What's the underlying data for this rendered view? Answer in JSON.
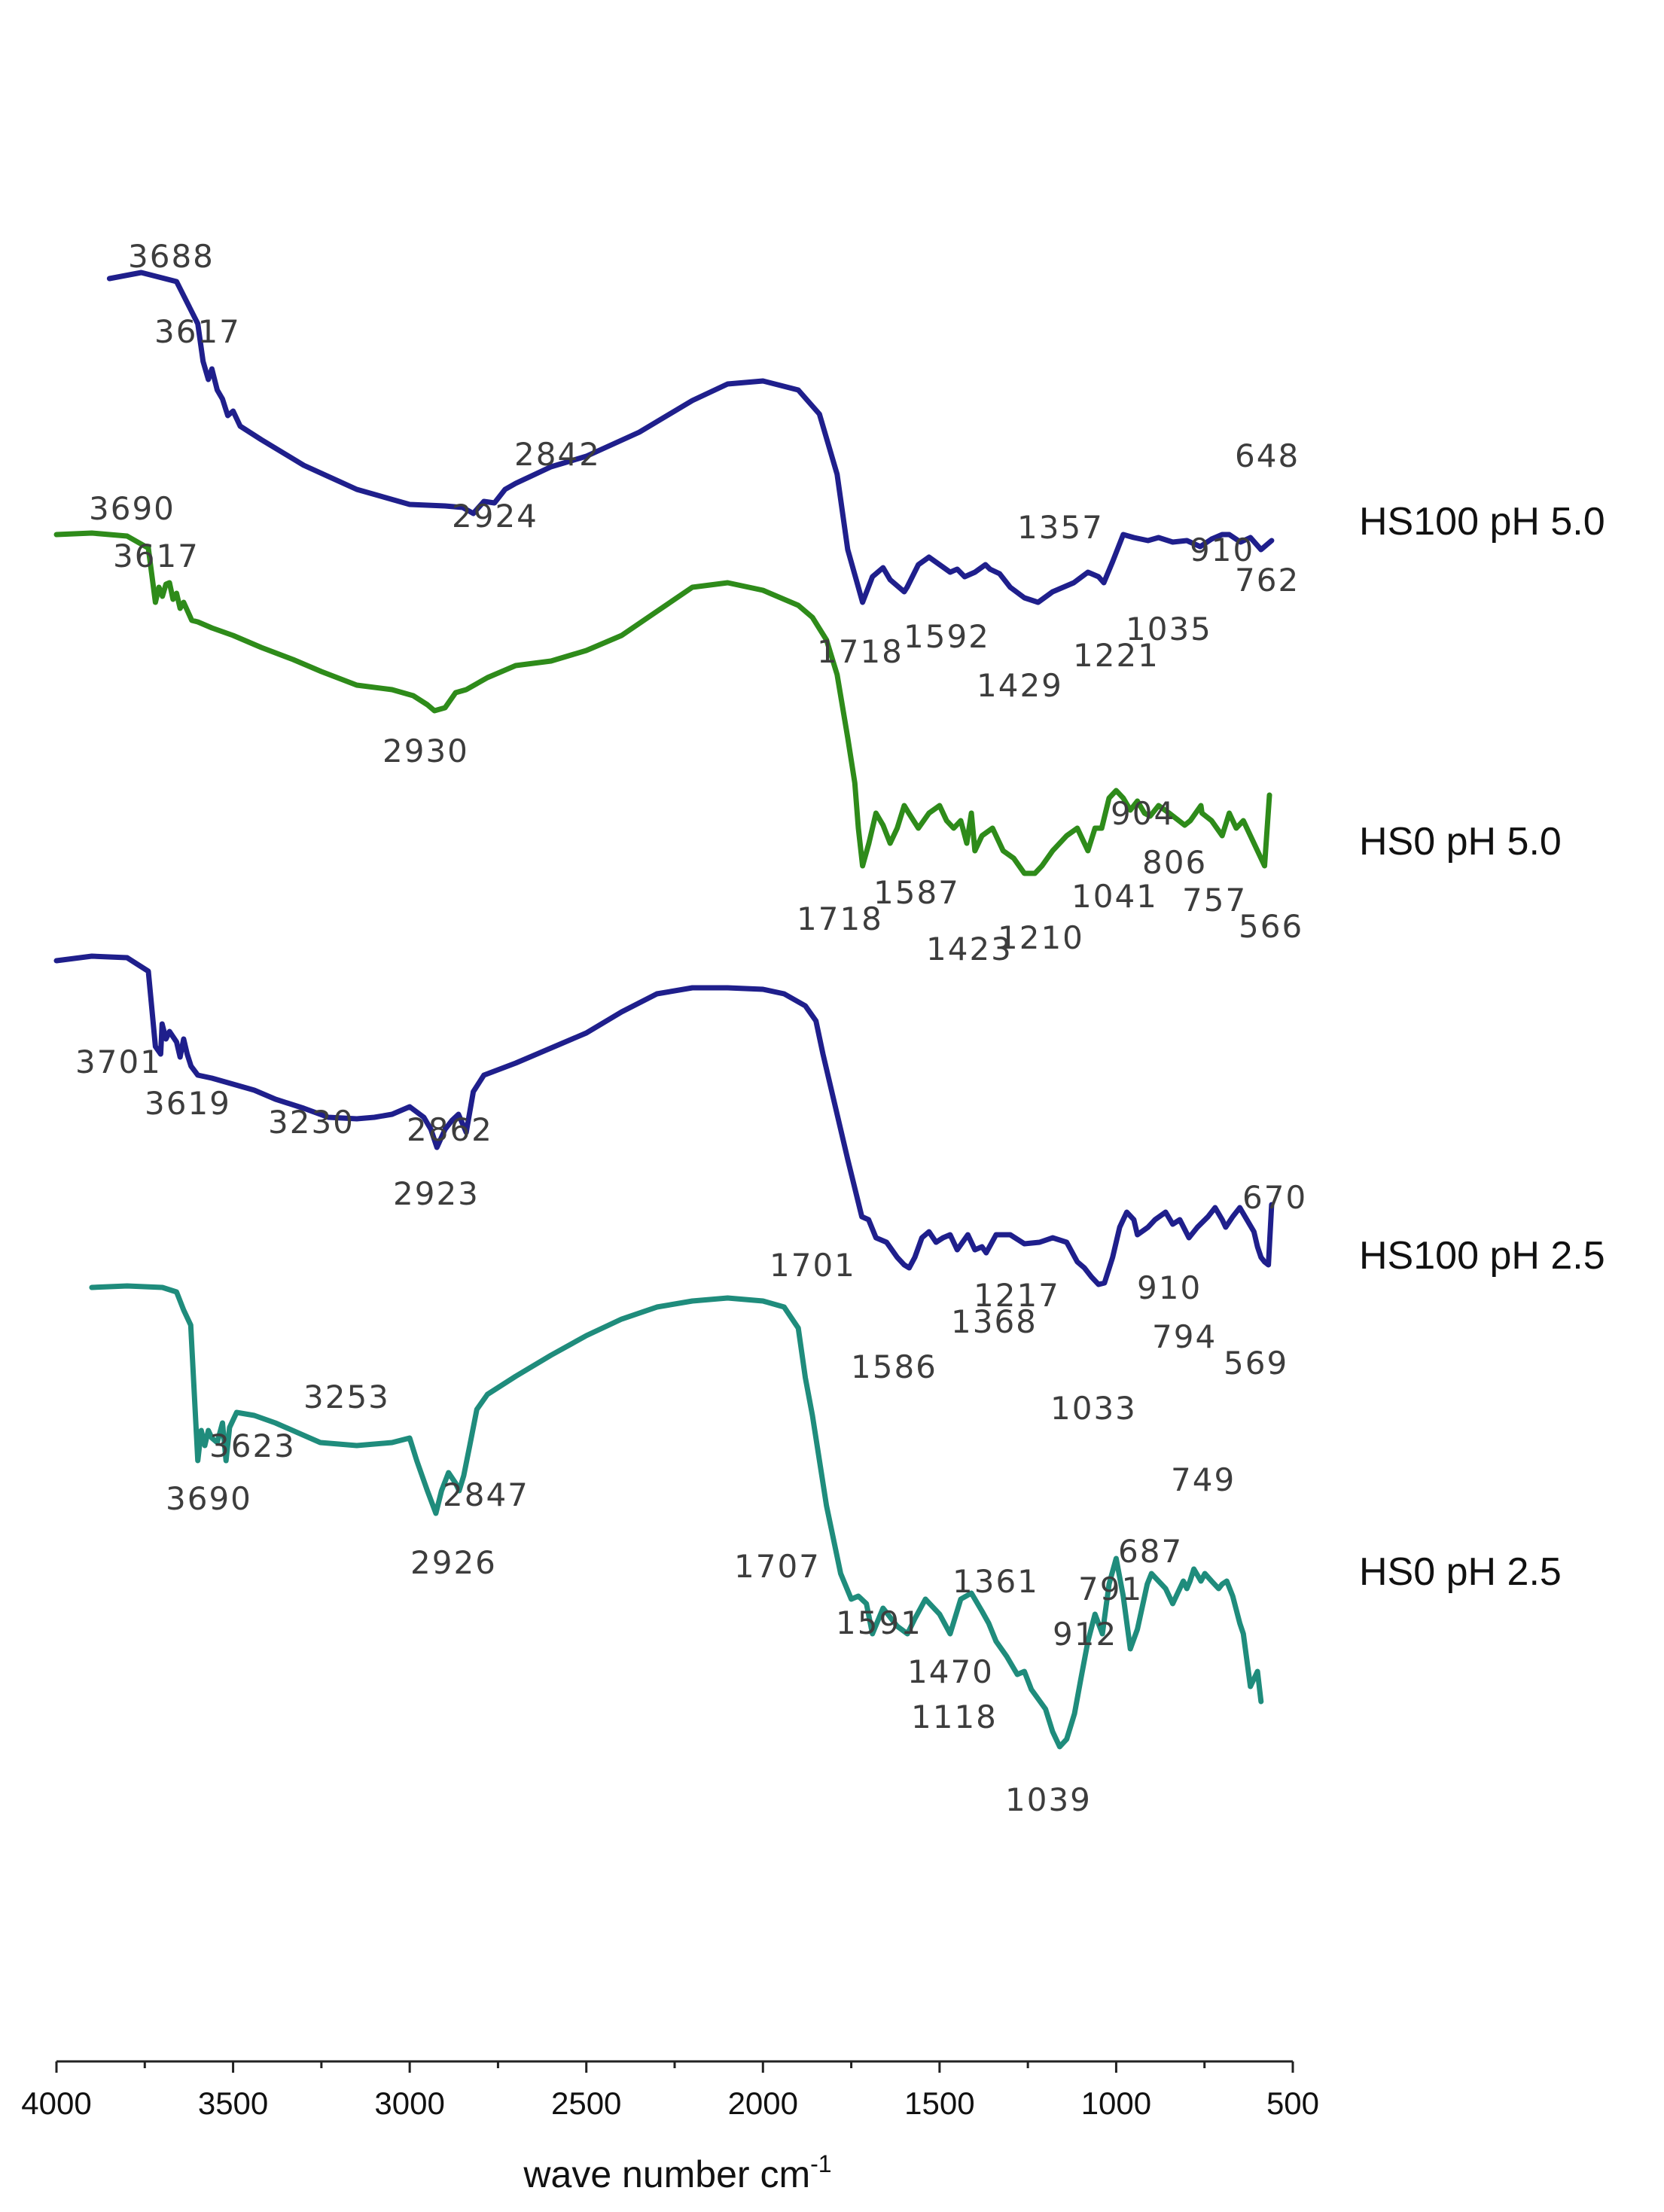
{
  "chart_data": {
    "type": "line",
    "title": "",
    "xlabel": "wave number cm",
    "xlabel_superscript": "-1",
    "ylabel": "",
    "xlim": [
      4000,
      500
    ],
    "x_reversed": true,
    "xticks": [
      4000,
      3500,
      3000,
      2500,
      2000,
      1500,
      1000,
      500
    ],
    "xtick_labels": [
      "4000",
      "3500",
      "3000",
      "2500",
      "2000",
      "1500",
      "1000",
      "500"
    ],
    "y_axis_shown": false,
    "grid": false,
    "legend": "series names at right end of each trace",
    "series": [
      {
        "name": "HS100 pH 5.0",
        "color": "#1f1f8c",
        "x": [
          3850,
          3760,
          3660,
          3600,
          3585,
          3570,
          3560,
          3545,
          3530,
          3515,
          3500,
          3480,
          3420,
          3300,
          3150,
          3000,
          2900,
          2850,
          2820,
          2790,
          2760,
          2730,
          2700,
          2600,
          2500,
          2350,
          2200,
          2100,
          2000,
          1900,
          1840,
          1790,
          1760,
          1730,
          1718,
          1690,
          1660,
          1640,
          1600,
          1592,
          1560,
          1530,
          1500,
          1470,
          1450,
          1429,
          1400,
          1370,
          1357,
          1330,
          1300,
          1260,
          1221,
          1180,
          1120,
          1080,
          1050,
          1035,
          1010,
          980,
          950,
          910,
          880,
          840,
          800,
          762,
          730,
          700,
          680,
          648,
          620,
          590,
          560
        ],
        "y": [
          1.6,
          1.64,
          1.58,
          1.3,
          1.05,
          0.93,
          1.0,
          0.86,
          0.8,
          0.69,
          0.72,
          0.62,
          0.53,
          0.36,
          0.2,
          0.1,
          0.09,
          0.08,
          0.04,
          0.12,
          0.11,
          0.2,
          0.24,
          0.35,
          0.42,
          0.58,
          0.79,
          0.9,
          0.92,
          0.86,
          0.7,
          0.3,
          -0.2,
          -0.45,
          -0.55,
          -0.38,
          -0.32,
          -0.4,
          -0.48,
          -0.45,
          -0.3,
          -0.25,
          -0.3,
          -0.35,
          -0.33,
          -0.38,
          -0.35,
          -0.3,
          -0.33,
          -0.36,
          -0.45,
          -0.52,
          -0.55,
          -0.48,
          -0.42,
          -0.35,
          -0.38,
          -0.42,
          -0.28,
          -0.1,
          -0.12,
          -0.14,
          -0.12,
          -0.15,
          -0.14,
          -0.18,
          -0.13,
          -0.1,
          -0.1,
          -0.15,
          -0.12,
          -0.2,
          -0.14
        ]
      },
      {
        "name": "HS0 pH 5.0",
        "color": "#2e8b1a",
        "x": [
          4000,
          3900,
          3800,
          3740,
          3720,
          3710,
          3700,
          3690,
          3680,
          3670,
          3660,
          3650,
          3640,
          3617,
          3600,
          3560,
          3500,
          3420,
          3330,
          3250,
          3150,
          3050,
          2990,
          2950,
          2930,
          2900,
          2870,
          2840,
          2780,
          2700,
          2600,
          2500,
          2400,
          2300,
          2200,
          2100,
          2000,
          1900,
          1860,
          1820,
          1790,
          1760,
          1740,
          1730,
          1718,
          1700,
          1680,
          1660,
          1640,
          1620,
          1600,
          1587,
          1560,
          1530,
          1500,
          1480,
          1460,
          1440,
          1423,
          1410,
          1400,
          1380,
          1350,
          1320,
          1290,
          1260,
          1230,
          1210,
          1180,
          1140,
          1110,
          1080,
          1060,
          1041,
          1020,
          1000,
          980,
          960,
          940,
          920,
          904,
          880,
          850,
          806,
          790,
          760,
          757,
          730,
          700,
          680,
          660,
          640,
          620,
          600,
          590,
          580,
          566
        ],
        "y": [
          1.65,
          1.66,
          1.64,
          1.56,
          1.2,
          1.3,
          1.24,
          1.32,
          1.33,
          1.22,
          1.26,
          1.16,
          1.2,
          1.08,
          1.07,
          1.03,
          0.98,
          0.9,
          0.82,
          0.74,
          0.65,
          0.62,
          0.58,
          0.52,
          0.48,
          0.5,
          0.6,
          0.62,
          0.7,
          0.78,
          0.81,
          0.88,
          0.98,
          1.14,
          1.3,
          1.33,
          1.28,
          1.18,
          1.1,
          0.95,
          0.72,
          0.3,
          0.0,
          -0.3,
          -0.55,
          -0.4,
          -0.2,
          -0.28,
          -0.4,
          -0.3,
          -0.15,
          -0.2,
          -0.3,
          -0.2,
          -0.15,
          -0.25,
          -0.3,
          -0.25,
          -0.4,
          -0.2,
          -0.45,
          -0.35,
          -0.3,
          -0.45,
          -0.5,
          -0.6,
          -0.6,
          -0.55,
          -0.45,
          -0.35,
          -0.3,
          -0.45,
          -0.3,
          -0.3,
          -0.1,
          -0.05,
          -0.1,
          -0.18,
          -0.12,
          -0.2,
          -0.22,
          -0.15,
          -0.2,
          -0.28,
          -0.25,
          -0.15,
          -0.2,
          -0.25,
          -0.35,
          -0.2,
          -0.3,
          -0.25,
          -0.35,
          -0.45,
          -0.5,
          -0.55,
          -0.08
        ]
      },
      {
        "name": "HS100 pH 2.5",
        "color": "#1f1f8c",
        "x": [
          4000,
          3900,
          3800,
          3740,
          3720,
          3705,
          3701,
          3690,
          3680,
          3660,
          3650,
          3640,
          3630,
          3619,
          3600,
          3560,
          3500,
          3440,
          3380,
          3300,
          3230,
          3150,
          3100,
          3050,
          3000,
          2960,
          2940,
          2923,
          2900,
          2880,
          2862,
          2840,
          2820,
          2790,
          2700,
          2600,
          2500,
          2400,
          2300,
          2200,
          2100,
          2000,
          1940,
          1880,
          1850,
          1830,
          1800,
          1760,
          1720,
          1701,
          1680,
          1650,
          1620,
          1600,
          1586,
          1570,
          1550,
          1530,
          1510,
          1490,
          1470,
          1450,
          1420,
          1400,
          1380,
          1368,
          1340,
          1300,
          1260,
          1217,
          1180,
          1140,
          1110,
          1090,
          1070,
          1050,
          1033,
          1010,
          990,
          970,
          950,
          940,
          910,
          890,
          860,
          840,
          820,
          794,
          770,
          740,
          720,
          700,
          690,
          670,
          650,
          630,
          610,
          600,
          590,
          580,
          569,
          560
        ],
        "y": [
          1.42,
          1.45,
          1.44,
          1.35,
          0.85,
          0.8,
          1.0,
          0.9,
          0.95,
          0.88,
          0.78,
          0.9,
          0.8,
          0.72,
          0.66,
          0.64,
          0.6,
          0.56,
          0.5,
          0.44,
          0.38,
          0.37,
          0.38,
          0.4,
          0.45,
          0.38,
          0.3,
          0.18,
          0.3,
          0.36,
          0.4,
          0.28,
          0.55,
          0.66,
          0.74,
          0.84,
          0.94,
          1.08,
          1.2,
          1.24,
          1.24,
          1.23,
          1.2,
          1.12,
          1.02,
          0.8,
          0.5,
          0.1,
          -0.28,
          -0.3,
          -0.42,
          -0.45,
          -0.55,
          -0.6,
          -0.62,
          -0.55,
          -0.42,
          -0.38,
          -0.45,
          -0.42,
          -0.4,
          -0.5,
          -0.4,
          -0.5,
          -0.48,
          -0.52,
          -0.4,
          -0.4,
          -0.46,
          -0.45,
          -0.42,
          -0.45,
          -0.58,
          -0.62,
          -0.68,
          -0.73,
          -0.72,
          -0.55,
          -0.35,
          -0.25,
          -0.3,
          -0.4,
          -0.35,
          -0.3,
          -0.25,
          -0.33,
          -0.3,
          -0.42,
          -0.35,
          -0.28,
          -0.22,
          -0.3,
          -0.35,
          -0.28,
          -0.22,
          -0.3,
          -0.38,
          -0.48,
          -0.55,
          -0.58,
          -0.6,
          -0.2
        ]
      },
      {
        "name": "HS0 pH 2.5",
        "color": "#1f8c7c",
        "x": [
          3900,
          3800,
          3700,
          3660,
          3640,
          3620,
          3600,
          3590,
          3580,
          3570,
          3560,
          3545,
          3530,
          3520,
          3510,
          3490,
          3440,
          3380,
          3253,
          3150,
          3050,
          3000,
          2980,
          2950,
          2926,
          2910,
          2890,
          2870,
          2860,
          2847,
          2830,
          2810,
          2780,
          2700,
          2600,
          2500,
          2400,
          2300,
          2200,
          2100,
          2000,
          1940,
          1900,
          1880,
          1860,
          1820,
          1780,
          1750,
          1730,
          1707,
          1690,
          1660,
          1620,
          1591,
          1570,
          1540,
          1500,
          1470,
          1440,
          1410,
          1380,
          1361,
          1340,
          1310,
          1280,
          1260,
          1240,
          1200,
          1180,
          1160,
          1140,
          1118,
          1100,
          1080,
          1060,
          1039,
          1020,
          1000,
          980,
          960,
          940,
          912,
          900,
          880,
          860,
          840,
          820,
          810,
          800,
          791,
          780,
          760,
          749,
          730,
          710,
          700,
          687,
          670,
          650,
          640,
          620,
          600,
          590
        ],
        "y": [
          1.45,
          1.46,
          1.45,
          1.42,
          1.3,
          1.2,
          0.3,
          0.5,
          0.4,
          0.5,
          0.45,
          0.42,
          0.55,
          0.3,
          0.52,
          0.62,
          0.6,
          0.55,
          0.42,
          0.4,
          0.42,
          0.45,
          0.3,
          0.1,
          -0.05,
          0.1,
          0.22,
          0.15,
          0.1,
          0.2,
          0.4,
          0.64,
          0.74,
          0.86,
          1.0,
          1.13,
          1.24,
          1.32,
          1.36,
          1.38,
          1.36,
          1.32,
          1.18,
          0.85,
          0.6,
          0.0,
          -0.45,
          -0.62,
          -0.6,
          -0.65,
          -0.85,
          -0.68,
          -0.8,
          -0.85,
          -0.75,
          -0.62,
          -0.72,
          -0.85,
          -0.62,
          -0.58,
          -0.7,
          -0.78,
          -0.9,
          -1.0,
          -1.12,
          -1.1,
          -1.22,
          -1.35,
          -1.5,
          -1.6,
          -1.55,
          -1.38,
          -1.15,
          -0.9,
          -0.72,
          -0.85,
          -0.52,
          -0.35,
          -0.6,
          -0.95,
          -0.82,
          -0.52,
          -0.45,
          -0.5,
          -0.55,
          -0.65,
          -0.55,
          -0.5,
          -0.55,
          -0.5,
          -0.42,
          -0.5,
          -0.45,
          -0.5,
          -0.55,
          -0.52,
          -0.5,
          -0.6,
          -0.78,
          -0.85,
          -1.2,
          -1.1,
          -1.3
        ]
      }
    ],
    "peak_labels": [
      {
        "series": "HS100 pH 5.0",
        "labels": [
          "3688",
          "3617",
          "2924",
          "2842",
          "1718",
          "1592",
          "1429",
          "1357",
          "1221",
          "1035",
          "910",
          "762",
          "648"
        ]
      },
      {
        "series": "HS0 pH 5.0",
        "labels": [
          "3690",
          "3617",
          "2930",
          "1718",
          "1587",
          "1423",
          "1210",
          "1041",
          "904",
          "806",
          "757",
          "566"
        ]
      },
      {
        "series": "HS100 pH 2.5",
        "labels": [
          "3701",
          "3619",
          "3230",
          "2923",
          "2862",
          "1701",
          "1586",
          "1368",
          "1217",
          "1033",
          "910",
          "794",
          "670",
          "569"
        ]
      },
      {
        "series": "HS0 pH 2.5",
        "labels": [
          "3690",
          "3623",
          "3253",
          "2926",
          "2847",
          "1707",
          "1591",
          "1470",
          "1361",
          "1118",
          "1039",
          "912",
          "791",
          "749",
          "687"
        ]
      }
    ]
  }
}
